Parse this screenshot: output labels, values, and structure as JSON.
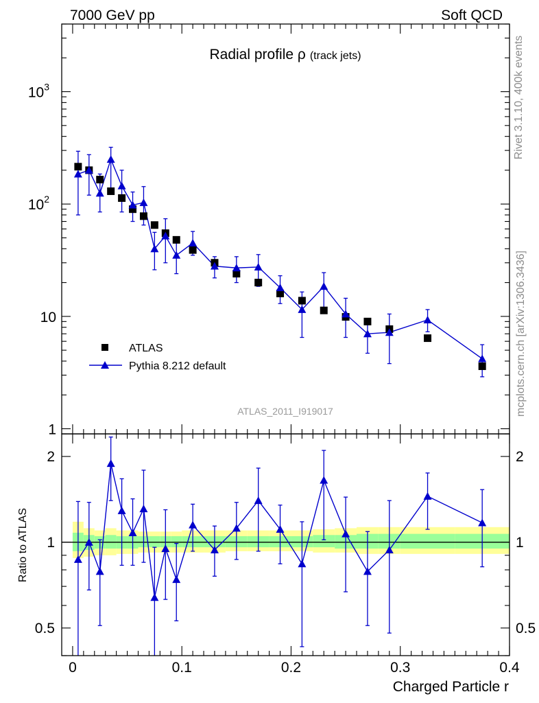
{
  "header": {
    "left": "7000 GeV pp",
    "right": "Soft QCD"
  },
  "side_labels": {
    "rivet": "Rivet 3.1.10,  400k events",
    "mcplots": "mcplots.cern.ch [arXiv:1306.3436]"
  },
  "chart_data": [
    {
      "type": "scatter",
      "title_main": "Radial profile ρ",
      "title_sub": "(track jets)",
      "analysis_id": "ATLAS_2011_I919017",
      "yscale": "log",
      "ylim": [
        0.9,
        4000
      ],
      "xlim": [
        -0.01,
        0.4
      ],
      "y_ticks": [
        {
          "value": 1,
          "label": "1"
        },
        {
          "value": 10,
          "label": "10"
        },
        {
          "value": 100,
          "label": "10",
          "exp": "2"
        },
        {
          "value": 1000,
          "label": "10",
          "exp": "3"
        }
      ],
      "legend_position": "bottom-left",
      "series": [
        {
          "name": "ATLAS",
          "style": "square-marker",
          "color": "#000000",
          "x": [
            0.005,
            0.015,
            0.025,
            0.035,
            0.045,
            0.055,
            0.065,
            0.075,
            0.085,
            0.095,
            0.11,
            0.13,
            0.15,
            0.17,
            0.19,
            0.21,
            0.23,
            0.25,
            0.27,
            0.29,
            0.325,
            0.375
          ],
          "y": [
            215,
            200,
            165,
            130,
            113,
            90,
            78,
            65,
            55,
            48,
            39,
            30,
            24,
            20,
            16,
            13.8,
            11.3,
            9.9,
            9.0,
            7.7,
            6.4,
            3.6
          ]
        },
        {
          "name": "Pythia 8.212 default",
          "style": "triangle-line",
          "color": "#0000cc",
          "x": [
            0.005,
            0.015,
            0.025,
            0.035,
            0.045,
            0.055,
            0.065,
            0.075,
            0.085,
            0.095,
            0.11,
            0.13,
            0.15,
            0.17,
            0.19,
            0.21,
            0.23,
            0.25,
            0.27,
            0.29,
            0.325,
            0.375
          ],
          "y": [
            185,
            200,
            125,
            250,
            145,
            98,
            103,
            40,
            52,
            35,
            45,
            28,
            27,
            27.5,
            18,
            11.5,
            18.5,
            10.5,
            7.0,
            7.2,
            9.3,
            4.2
          ],
          "err_low": [
            105,
            80,
            40,
            120,
            60,
            28,
            38,
            14,
            22,
            11,
            10,
            6,
            7,
            9,
            5,
            5,
            7,
            4,
            2.3,
            3.4,
            2,
            1.3
          ],
          "err_high": [
            110,
            75,
            60,
            70,
            55,
            30,
            40,
            16,
            22,
            13,
            12,
            6,
            7,
            8,
            5,
            5,
            6,
            4,
            2.2,
            3.3,
            2.2,
            1.4
          ]
        }
      ]
    },
    {
      "type": "scatter",
      "ylabel": "Ratio to ATLAS",
      "yscale": "log",
      "ylim": [
        0.4,
        2.4
      ],
      "xlim": [
        -0.01,
        0.4
      ],
      "xlabel": "Charged Particle r",
      "y_ticks": [
        {
          "value": 0.5,
          "label": "0.5"
        },
        {
          "value": 1,
          "label": "1"
        },
        {
          "value": 2,
          "label": "2"
        }
      ],
      "x_ticks": [
        {
          "value": 0,
          "label": "0"
        },
        {
          "value": 0.1,
          "label": "0.1"
        },
        {
          "value": 0.2,
          "label": "0.2"
        },
        {
          "value": 0.3,
          "label": "0.3"
        },
        {
          "value": 0.4,
          "label": "0.4"
        }
      ],
      "reference_line": 1,
      "bands": {
        "yellow_color": "#ffff99",
        "green_color": "#99ff99",
        "x_edges": [
          0.0,
          0.01,
          0.02,
          0.03,
          0.04,
          0.05,
          0.06,
          0.07,
          0.08,
          0.09,
          0.1,
          0.12,
          0.14,
          0.16,
          0.18,
          0.2,
          0.22,
          0.24,
          0.26,
          0.28,
          0.3,
          0.35,
          0.4
        ],
        "yellow": [
          [
            0.88,
            1.18
          ],
          [
            0.89,
            1.12
          ],
          [
            0.9,
            1.1
          ],
          [
            0.9,
            1.12
          ],
          [
            0.91,
            1.1
          ],
          [
            0.91,
            1.1
          ],
          [
            0.92,
            1.09
          ],
          [
            0.92,
            1.09
          ],
          [
            0.92,
            1.09
          ],
          [
            0.92,
            1.09
          ],
          [
            0.92,
            1.1
          ],
          [
            0.92,
            1.1
          ],
          [
            0.93,
            1.1
          ],
          [
            0.93,
            1.1
          ],
          [
            0.93,
            1.1
          ],
          [
            0.93,
            1.1
          ],
          [
            0.92,
            1.11
          ],
          [
            0.92,
            1.12
          ],
          [
            0.91,
            1.13
          ],
          [
            0.91,
            1.13
          ],
          [
            0.91,
            1.13
          ],
          [
            0.91,
            1.13
          ]
        ],
        "green": [
          [
            0.93,
            1.08
          ],
          [
            0.94,
            1.06
          ],
          [
            0.95,
            1.05
          ],
          [
            0.95,
            1.06
          ],
          [
            0.95,
            1.05
          ],
          [
            0.95,
            1.05
          ],
          [
            0.96,
            1.05
          ],
          [
            0.96,
            1.05
          ],
          [
            0.96,
            1.05
          ],
          [
            0.96,
            1.05
          ],
          [
            0.96,
            1.05
          ],
          [
            0.96,
            1.05
          ],
          [
            0.96,
            1.05
          ],
          [
            0.96,
            1.05
          ],
          [
            0.96,
            1.05
          ],
          [
            0.96,
            1.05
          ],
          [
            0.96,
            1.06
          ],
          [
            0.95,
            1.06
          ],
          [
            0.95,
            1.07
          ],
          [
            0.95,
            1.07
          ],
          [
            0.95,
            1.07
          ],
          [
            0.95,
            1.07
          ]
        ]
      },
      "series": [
        {
          "name": "Pythia 8.212 default / ATLAS",
          "style": "triangle-line",
          "color": "#0000cc",
          "x": [
            0.005,
            0.015,
            0.025,
            0.035,
            0.045,
            0.055,
            0.065,
            0.075,
            0.085,
            0.095,
            0.11,
            0.13,
            0.15,
            0.17,
            0.19,
            0.21,
            0.23,
            0.25,
            0.27,
            0.29,
            0.325,
            0.375
          ],
          "y": [
            0.87,
            1.0,
            0.79,
            1.89,
            1.29,
            1.08,
            1.31,
            0.64,
            0.95,
            0.74,
            1.15,
            0.94,
            1.12,
            1.4,
            1.11,
            0.84,
            1.65,
            1.07,
            0.79,
            0.94,
            1.45,
            1.17
          ],
          "err_low": [
            0.51,
            0.32,
            0.28,
            0.49,
            0.46,
            0.25,
            0.46,
            0.25,
            0.32,
            0.21,
            0.22,
            0.18,
            0.25,
            0.47,
            0.27,
            0.41,
            0.63,
            0.4,
            0.28,
            0.46,
            0.34,
            0.35
          ],
          "err_high": [
            0.52,
            0.38,
            0.23,
            0.45,
            0.38,
            0.34,
            0.48,
            0.32,
            0.35,
            0.25,
            0.21,
            0.2,
            0.26,
            0.42,
            0.24,
            0.34,
            0.45,
            0.37,
            0.3,
            0.46,
            0.3,
            0.36
          ]
        }
      ]
    }
  ]
}
